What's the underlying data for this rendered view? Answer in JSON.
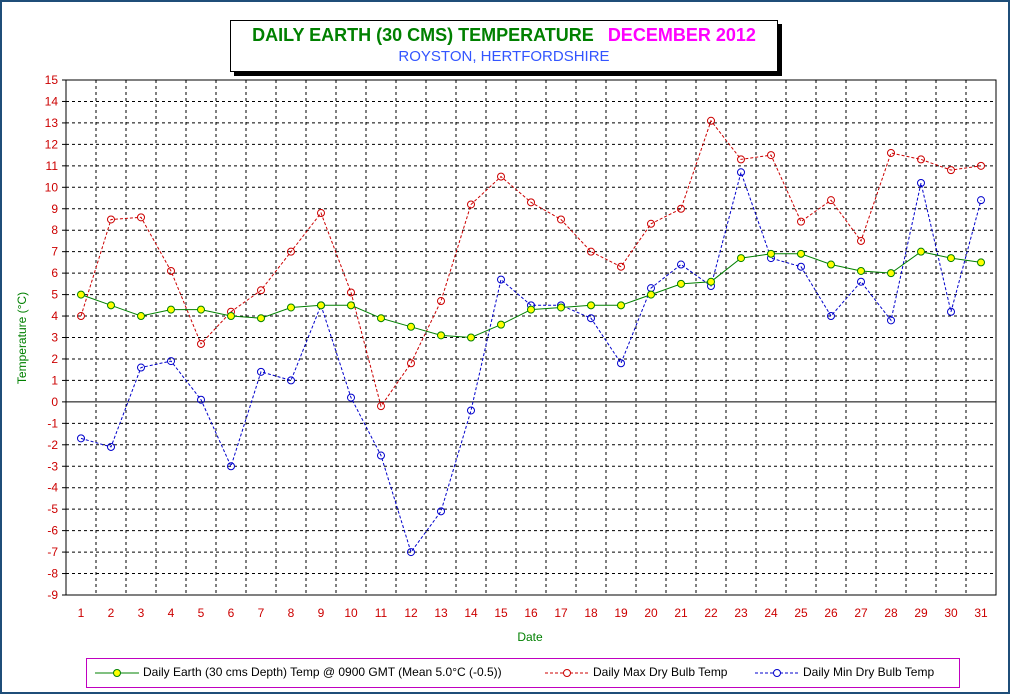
{
  "chart_data": {
    "type": "line",
    "title": "DAILY EARTH (30 CMS) TEMPERATURE",
    "title_period": "DECEMBER 2012",
    "subtitle": "ROYSTON, HERTFORDSHIRE",
    "xlabel": "Date",
    "ylabel": "Temperature (°C)",
    "x": [
      1,
      2,
      3,
      4,
      5,
      6,
      7,
      8,
      9,
      10,
      11,
      12,
      13,
      14,
      15,
      16,
      17,
      18,
      19,
      20,
      21,
      22,
      23,
      24,
      25,
      26,
      27,
      28,
      29,
      30,
      31
    ],
    "ylim": [
      -9,
      15
    ],
    "yticks": [
      -9,
      -8,
      -7,
      -6,
      -5,
      -4,
      -3,
      -2,
      -1,
      0,
      1,
      2,
      3,
      4,
      5,
      6,
      7,
      8,
      9,
      10,
      11,
      12,
      13,
      14,
      15
    ],
    "grid": true,
    "legend_position": "bottom",
    "series": [
      {
        "name": "Daily Earth (30 cms Depth) Temp @ 0900 GMT (Mean 5.0°C (-0.5))",
        "color": "#008000",
        "marker_fill": "#ffff00",
        "style": "solid",
        "values": [
          5.0,
          4.5,
          4.0,
          4.3,
          4.3,
          4.0,
          3.9,
          4.4,
          4.5,
          4.5,
          3.9,
          3.5,
          3.1,
          3.0,
          3.6,
          4.3,
          4.4,
          4.5,
          4.5,
          5.0,
          5.5,
          5.6,
          6.7,
          6.9,
          6.9,
          6.4,
          6.1,
          6.0,
          7.0,
          6.7,
          6.5
        ]
      },
      {
        "name": "Daily Max Dry Bulb Temp",
        "color": "#cc0000",
        "marker_fill": "none",
        "style": "dashed",
        "values": [
          4.0,
          8.5,
          8.6,
          6.1,
          2.7,
          4.2,
          5.2,
          7.0,
          8.8,
          5.1,
          -0.2,
          1.8,
          4.7,
          9.2,
          10.5,
          9.3,
          8.5,
          7.0,
          6.3,
          8.3,
          9.0,
          13.1,
          11.3,
          11.5,
          8.4,
          9.4,
          7.5,
          11.6,
          11.3,
          10.8,
          11.0
        ]
      },
      {
        "name": "Daily Min Dry Bulb Temp",
        "color": "#0000cc",
        "marker_fill": "none",
        "style": "dashed",
        "values": [
          -1.7,
          -2.1,
          1.6,
          1.9,
          0.1,
          -3.0,
          1.4,
          1.0,
          4.5,
          0.2,
          -2.5,
          -7.0,
          -5.1,
          -0.4,
          5.7,
          4.5,
          4.5,
          3.9,
          1.8,
          5.3,
          6.4,
          5.4,
          10.7,
          6.7,
          6.3,
          4.0,
          5.6,
          3.8,
          10.2,
          4.2,
          9.4
        ]
      }
    ]
  }
}
